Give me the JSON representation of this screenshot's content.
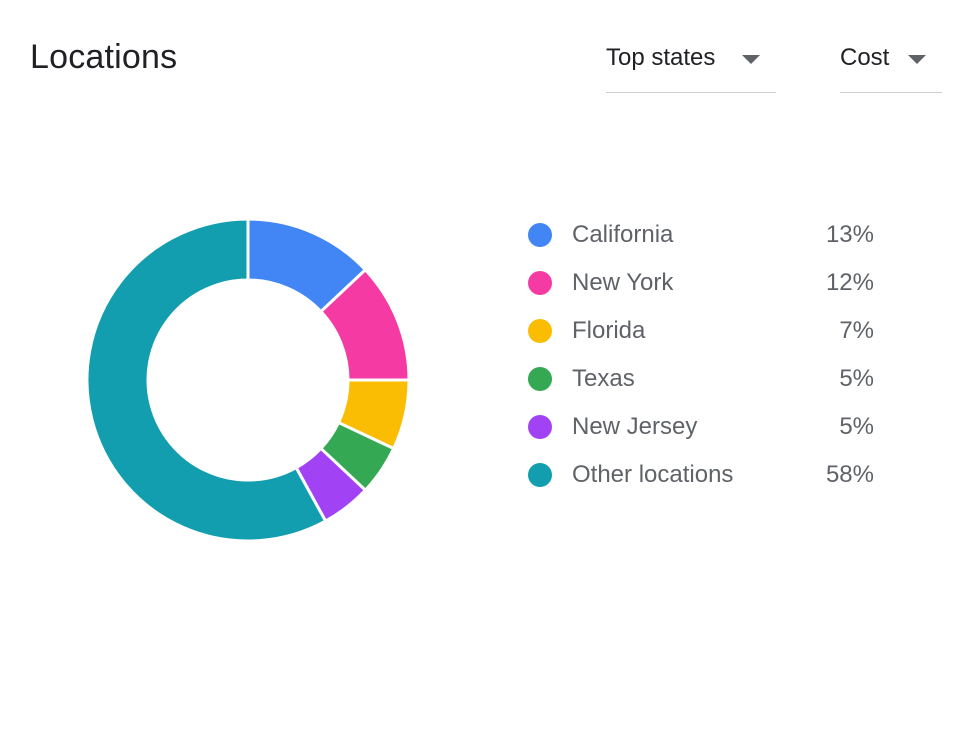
{
  "header": {
    "title": "Locations",
    "scope_dropdown": {
      "selected": "Top states"
    },
    "metric_dropdown": {
      "selected": "Cost"
    }
  },
  "chart_data": {
    "type": "pie",
    "donut": true,
    "categories": [
      "California",
      "New York",
      "Florida",
      "Texas",
      "New Jersey",
      "Other locations"
    ],
    "values": [
      13,
      12,
      7,
      5,
      5,
      58
    ],
    "value_labels": [
      "13%",
      "12%",
      "7%",
      "5%",
      "5%",
      "58%"
    ],
    "colors": [
      "#4285f4",
      "#f53ba3",
      "#fbbc04",
      "#34a853",
      "#a142f4",
      "#129eaf"
    ],
    "legend_position": "right"
  }
}
